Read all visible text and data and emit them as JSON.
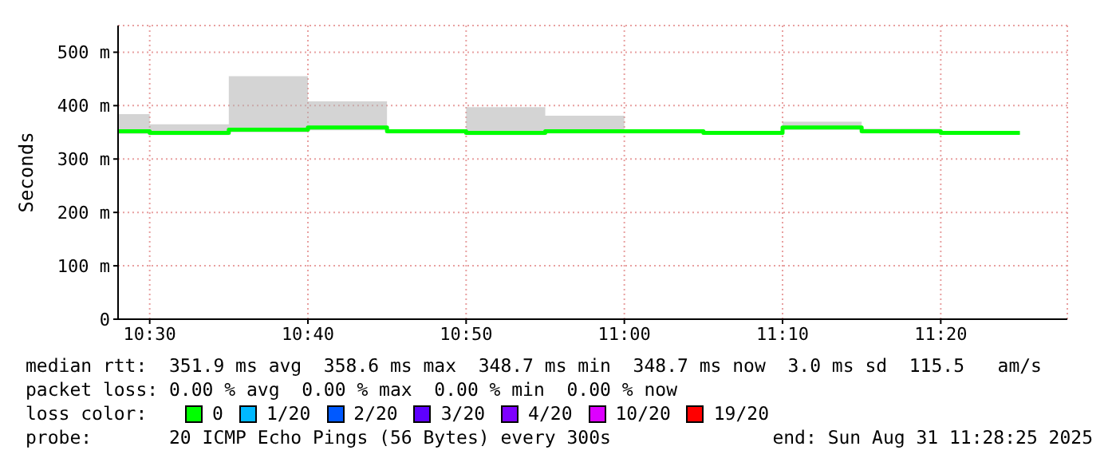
{
  "chart_data": {
    "type": "step",
    "ylabel": "Seconds",
    "x": [
      "2025-08-31T10:28",
      "2025-08-31T10:30",
      "2025-08-31T10:35",
      "2025-08-31T10:40",
      "2025-08-31T10:45",
      "2025-08-31T10:50",
      "2025-08-31T10:55",
      "2025-08-31T11:00",
      "2025-08-31T11:05",
      "2025-08-31T11:10",
      "2025-08-31T11:15",
      "2025-08-31T11:20",
      "2025-08-31T11:25"
    ],
    "series": [
      {
        "name": "0",
        "color": "#00ff00",
        "values": [
          352,
          349,
          355,
          359,
          352,
          349,
          352,
          352,
          349,
          359,
          352,
          349,
          349
        ],
        "lower": [
          347,
          345,
          350,
          354,
          348,
          345,
          348,
          348,
          346,
          355,
          348,
          346,
          346
        ],
        "upper": [
          384,
          365,
          455,
          408,
          352,
          397,
          381,
          352,
          349,
          370,
          357,
          350,
          350
        ]
      },
      {
        "name": "1/20",
        "color": "#00b8ff",
        "values": [
          null,
          null,
          null,
          null,
          null,
          null,
          null,
          null,
          null,
          null,
          null,
          null,
          null
        ]
      },
      {
        "name": "2/20",
        "color": "#0059ff",
        "values": [
          null,
          null,
          null,
          null,
          null,
          null,
          null,
          null,
          null,
          null,
          null,
          null,
          null
        ]
      },
      {
        "name": "3/20",
        "color": "#5e00ff",
        "values": [
          null,
          null,
          null,
          null,
          null,
          null,
          null,
          null,
          null,
          null,
          null,
          null,
          null
        ]
      },
      {
        "name": "4/20",
        "color": "#7e00ff",
        "values": [
          null,
          null,
          null,
          null,
          null,
          null,
          null,
          null,
          null,
          null,
          null,
          null,
          null
        ]
      },
      {
        "name": "10/20",
        "color": "#dd00ff",
        "values": [
          null,
          null,
          null,
          null,
          null,
          null,
          null,
          null,
          null,
          null,
          null,
          null,
          null
        ]
      },
      {
        "name": "19/20",
        "color": "#ff0000",
        "values": [
          null,
          null,
          null,
          null,
          null,
          null,
          null,
          null,
          null,
          null,
          null,
          null,
          null
        ]
      }
    ],
    "xlim": [
      "2025-08-31T10:28",
      "2025-08-31T11:28"
    ],
    "xticks": [
      {
        "value": "2025-08-31T10:30",
        "label": "10:30"
      },
      {
        "value": "2025-08-31T10:40",
        "label": "10:40"
      },
      {
        "value": "2025-08-31T10:50",
        "label": "10:50"
      },
      {
        "value": "2025-08-31T11:00",
        "label": "11:00"
      },
      {
        "value": "2025-08-31T11:10",
        "label": "11:10"
      },
      {
        "value": "2025-08-31T11:20",
        "label": "11:20"
      }
    ],
    "ylim": [
      0,
      550
    ],
    "yticks": [
      0,
      {
        "value": 100,
        "label": "100 m"
      },
      {
        "value": 200,
        "label": "200 m"
      },
      {
        "value": 300,
        "label": "300 m"
      },
      {
        "value": 400,
        "label": "400 m"
      },
      {
        "value": 500,
        "label": "500 m"
      }
    ],
    "grid": true,
    "legend": "bottom",
    "legend_title": "loss color:",
    "marker": "none",
    "line_style": "solid",
    "annotations": [
      "median rtt:  351.9 ms avg  358.6 ms max  348.7 ms min  348.7 ms now  3.0 ms sd  115.5   am/s",
      "packet loss: 0.00 % avg  0.00 % max  0.00 % min  0.00 % now",
      "probe:       20 ICMP Echo Pings (56 Bytes) every 300s",
      "end: Sun Aug 31 11:28:25 2025"
    ]
  }
}
